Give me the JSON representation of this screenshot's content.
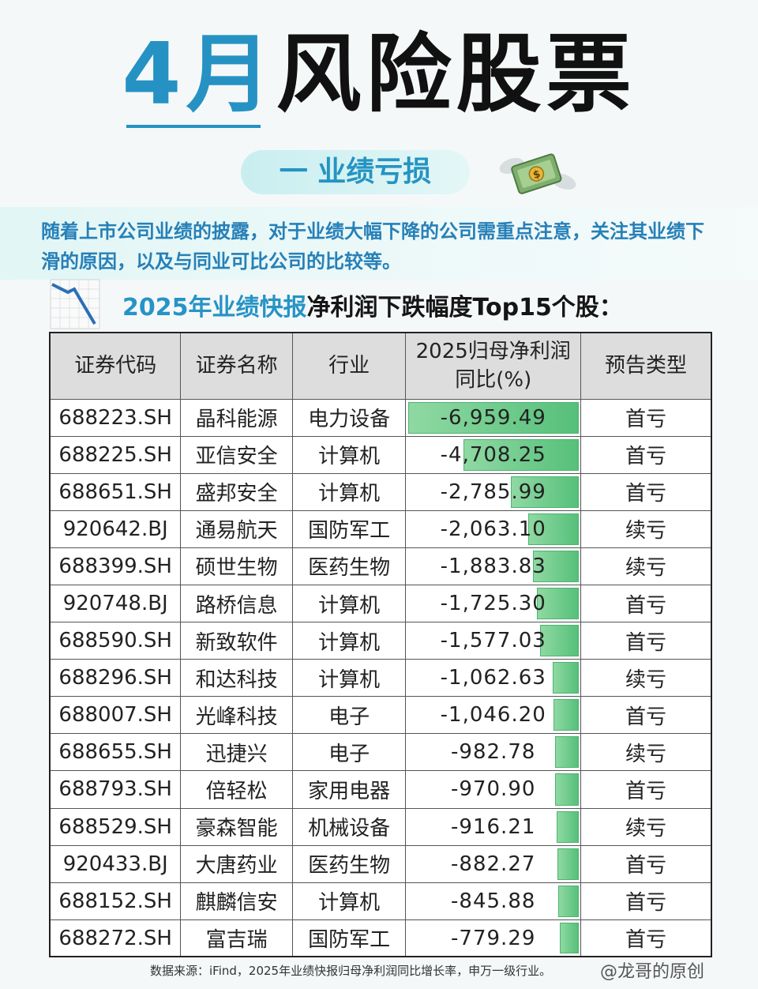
{
  "header": {
    "title_highlight": "4月",
    "title_rest": "风险股票",
    "subtitle": "一 业绩亏损",
    "money_icon": "flying-money-icon"
  },
  "intro": {
    "text": "随着上市公司业绩的披露，对于业绩大幅下降的公司需重点注意，关注其业绩下滑的原因，以及与同业可比公司的比较等。"
  },
  "section": {
    "title_blue": "2025年业绩快报",
    "title_black": "净利润下跌幅度Top15个股：",
    "icon": "declining-chart-icon"
  },
  "table": {
    "headers": {
      "code": "证券代码",
      "name": "证券名称",
      "industry": "行业",
      "value_line1": "2025归母净利润",
      "value_line2": "同比(%)",
      "type": "预告类型"
    },
    "bar_max": 6959.49,
    "rows": [
      {
        "code": "688223.SH",
        "name": "晶科能源",
        "industry": "电力设备",
        "value": "-6,959.49",
        "num": -6959.49,
        "type": "首亏"
      },
      {
        "code": "688225.SH",
        "name": "亚信安全",
        "industry": "计算机",
        "value": "-4,708.25",
        "num": -4708.25,
        "type": "首亏"
      },
      {
        "code": "688651.SH",
        "name": "盛邦安全",
        "industry": "计算机",
        "value": "-2,785.99",
        "num": -2785.99,
        "type": "首亏"
      },
      {
        "code": "920642.BJ",
        "name": "通易航天",
        "industry": "国防军工",
        "value": "-2,063.10",
        "num": -2063.1,
        "type": "续亏"
      },
      {
        "code": "688399.SH",
        "name": "硕世生物",
        "industry": "医药生物",
        "value": "-1,883.83",
        "num": -1883.83,
        "type": "续亏"
      },
      {
        "code": "920748.BJ",
        "name": "路桥信息",
        "industry": "计算机",
        "value": "-1,725.30",
        "num": -1725.3,
        "type": "首亏"
      },
      {
        "code": "688590.SH",
        "name": "新致软件",
        "industry": "计算机",
        "value": "-1,577.03",
        "num": -1577.03,
        "type": "首亏"
      },
      {
        "code": "688296.SH",
        "name": "和达科技",
        "industry": "计算机",
        "value": "-1,062.63",
        "num": -1062.63,
        "type": "续亏"
      },
      {
        "code": "688007.SH",
        "name": "光峰科技",
        "industry": "电子",
        "value": "-1,046.20",
        "num": -1046.2,
        "type": "首亏"
      },
      {
        "code": "688655.SH",
        "name": "迅捷兴",
        "industry": "电子",
        "value": "-982.78",
        "num": -982.78,
        "type": "续亏"
      },
      {
        "code": "688793.SH",
        "name": "倍轻松",
        "industry": "家用电器",
        "value": "-970.90",
        "num": -970.9,
        "type": "首亏"
      },
      {
        "code": "688529.SH",
        "name": "豪森智能",
        "industry": "机械设备",
        "value": "-916.21",
        "num": -916.21,
        "type": "续亏"
      },
      {
        "code": "920433.BJ",
        "name": "大唐药业",
        "industry": "医药生物",
        "value": "-882.27",
        "num": -882.27,
        "type": "首亏"
      },
      {
        "code": "688152.SH",
        "name": "麒麟信安",
        "industry": "计算机",
        "value": "-845.88",
        "num": -845.88,
        "type": "首亏"
      },
      {
        "code": "688272.SH",
        "name": "富吉瑞",
        "industry": "国防军工",
        "value": "-779.29",
        "num": -779.29,
        "type": "首亏"
      }
    ]
  },
  "footer": {
    "source": "数据来源：iFind，2025年业绩快报归母净利润同比增长率，申万一级行业。",
    "watermark": "@龙哥的原创"
  },
  "colors": {
    "accent_blue": "#2592c3",
    "bar_green": "#56c07a",
    "header_gray": "#dddddd"
  }
}
